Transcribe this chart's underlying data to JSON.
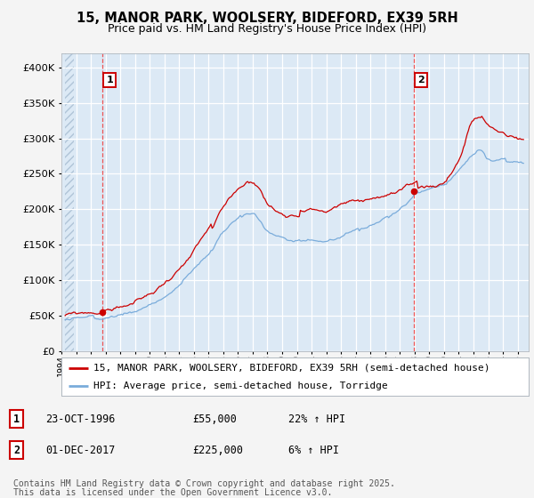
{
  "title_line1": "15, MANOR PARK, WOOLSERY, BIDEFORD, EX39 5RH",
  "title_line2": "Price paid vs. HM Land Registry's House Price Index (HPI)",
  "bg_color": "#f4f4f4",
  "plot_bg_color": "#dce9f5",
  "red_line_color": "#cc0000",
  "blue_line_color": "#7aacdb",
  "dashed_line_color": "#ee4444",
  "hatch_color": "#c8d8e8",
  "sale1_date_num": 1996.81,
  "sale1_price": 55000,
  "sale2_date_num": 2017.92,
  "sale2_price": 225000,
  "xmin": 1994.25,
  "xmax": 2025.75,
  "ymin": 0,
  "ymax": 420000,
  "yticks": [
    0,
    50000,
    100000,
    150000,
    200000,
    250000,
    300000,
    350000,
    400000
  ],
  "ytick_labels": [
    "£0",
    "£50K",
    "£100K",
    "£150K",
    "£200K",
    "£250K",
    "£300K",
    "£350K",
    "£400K"
  ],
  "legend_label1": "15, MANOR PARK, WOOLSERY, BIDEFORD, EX39 5RH (semi-detached house)",
  "legend_label2": "HPI: Average price, semi-detached house, Torridge",
  "sale1_label": "23-OCT-1996",
  "sale1_price_str": "£55,000",
  "sale1_hpi_str": "22% ↑ HPI",
  "sale2_label": "01-DEC-2017",
  "sale2_price_str": "£225,000",
  "sale2_hpi_str": "6% ↑ HPI",
  "footnote_line1": "Contains HM Land Registry data © Crown copyright and database right 2025.",
  "footnote_line2": "This data is licensed under the Open Government Licence v3.0."
}
